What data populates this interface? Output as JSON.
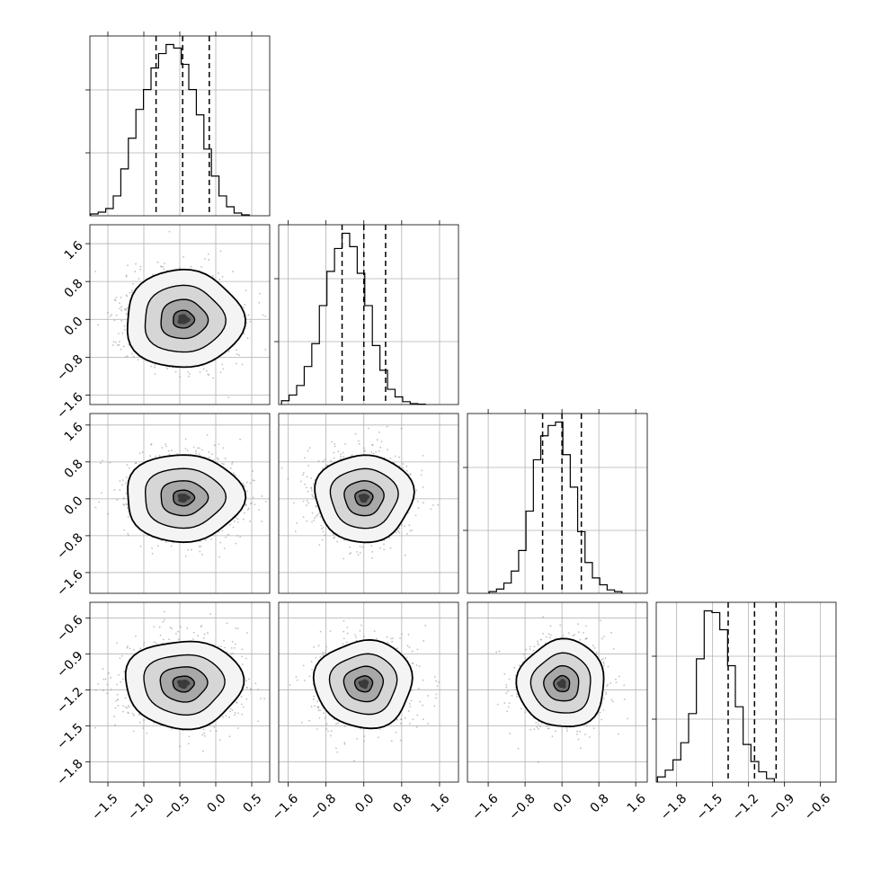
{
  "chart_data": {
    "type": "corner",
    "grid": true,
    "colors": {
      "background": "#ffffff",
      "line": "#000000",
      "grid": "#b0b0b0",
      "points": "#8c8c8c"
    },
    "parameters": [
      {
        "range": [
          -1.75,
          0.75
        ],
        "quantiles": [
          -0.83,
          -0.46,
          -0.09
        ],
        "ticks": [
          -1.5,
          -1.0,
          -0.5,
          0.0,
          0.5
        ],
        "tick_labels": [
          "−1.5",
          "−1.0",
          "−0.5",
          "0.0",
          "0.5"
        ],
        "hist": {
          "start": -1.74,
          "bin_width": 0.105,
          "counts": [
            10,
            20,
            40,
            110,
            260,
            430,
            590,
            700,
            820,
            900,
            950,
            930,
            840,
            700,
            560,
            370,
            220,
            110,
            50,
            15,
            5
          ]
        }
      },
      {
        "range": [
          -1.8,
          2.0
        ],
        "quantiles": [
          -0.46,
          0.0,
          0.46
        ],
        "ticks": [
          -1.6,
          -0.8,
          0.0,
          0.8,
          1.6
        ],
        "tick_labels": [
          "−1.6",
          "−0.8",
          "0.0",
          "0.8",
          "1.6"
        ],
        "hist": {
          "start": -1.74,
          "bin_width": 0.16,
          "counts": [
            20,
            50,
            100,
            200,
            320,
            520,
            700,
            820,
            900,
            830,
            690,
            520,
            310,
            180,
            80,
            40,
            15,
            5,
            2
          ]
        }
      },
      {
        "range": [
          -2.05,
          1.85
        ],
        "quantiles": [
          -0.42,
          0.0,
          0.42
        ],
        "ticks": [
          -1.6,
          -0.8,
          0.0,
          0.8,
          1.6
        ],
        "tick_labels": [
          "−1.6",
          "−0.8",
          "0.0",
          "0.8",
          "1.6"
        ],
        "hist": {
          "start": -1.58,
          "bin_width": 0.16,
          "counts": [
            10,
            25,
            60,
            130,
            250,
            480,
            780,
            920,
            980,
            1000,
            810,
            620,
            360,
            180,
            90,
            50,
            20,
            10
          ]
        }
      },
      {
        "range": [
          -1.97,
          -0.47
        ],
        "quantiles": [
          -1.37,
          -1.15,
          -0.97
        ],
        "ticks": [
          -1.8,
          -1.5,
          -1.2,
          -0.9,
          -0.6
        ],
        "tick_labels": [
          "−1.8",
          "−1.5",
          "−1.2",
          "−0.9",
          "−0.6"
        ],
        "hist": {
          "start": -1.96,
          "bin_width": 0.065,
          "counts": [
            30,
            70,
            130,
            230,
            400,
            720,
            1000,
            990,
            890,
            680,
            440,
            220,
            120,
            60,
            20
          ]
        }
      }
    ],
    "pairs": [
      {
        "row": 1,
        "col": 0,
        "center": [
          -0.45,
          0.0
        ],
        "sd": [
          0.38,
          0.48
        ]
      },
      {
        "row": 2,
        "col": 0,
        "center": [
          -0.45,
          0.02
        ],
        "sd": [
          0.38,
          0.44
        ]
      },
      {
        "row": 2,
        "col": 1,
        "center": [
          0.0,
          0.02
        ],
        "sd": [
          0.48,
          0.44
        ]
      },
      {
        "row": 3,
        "col": 0,
        "center": [
          -0.45,
          -1.15
        ],
        "sd": [
          0.38,
          0.17
        ]
      },
      {
        "row": 3,
        "col": 1,
        "center": [
          0.0,
          -1.15
        ],
        "sd": [
          0.48,
          0.17
        ]
      },
      {
        "row": 3,
        "col": 2,
        "center": [
          0.0,
          -1.15
        ],
        "sd": [
          0.44,
          0.17
        ]
      }
    ]
  }
}
